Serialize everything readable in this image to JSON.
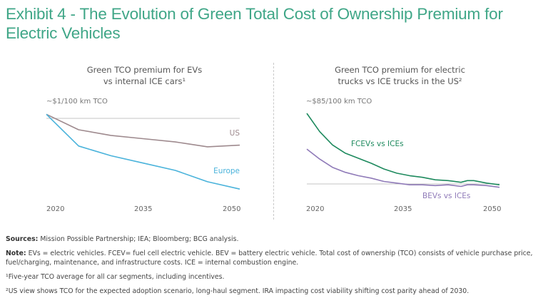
{
  "title": "Exhibit 4 - The Evolution of Green Total Cost of Ownership Premium for Electric Vehicles",
  "colors": {
    "title": "#3fa687",
    "us": "#9e8a8e",
    "europe": "#4ab3db",
    "fcev": "#1e8a5e",
    "bev": "#8f7ab8",
    "reference": "#c4c4c4"
  },
  "chart_data": [
    {
      "type": "line",
      "title": "Green TCO premium for EVs vs internal ICE cars¹",
      "title_lines": [
        "Green TCO premium for EVs",
        "vs internal ICE cars¹"
      ],
      "ylabel": "~$1/100 km TCO",
      "xlabel": "",
      "x_ticks": [
        "2020",
        "2035",
        "2050"
      ],
      "xlim": [
        2020,
        2050
      ],
      "ylim": [
        0,
        1.1
      ],
      "reference_line": 1.0,
      "grid": false,
      "x": [
        2020,
        2025,
        2030,
        2035,
        2040,
        2045,
        2050
      ],
      "series": [
        {
          "name": "US",
          "label": "US",
          "values": [
            1.05,
            0.86,
            0.79,
            0.75,
            0.71,
            0.65,
            0.67
          ]
        },
        {
          "name": "Europe",
          "label": "Europe",
          "values": [
            1.05,
            0.66,
            0.54,
            0.45,
            0.36,
            0.22,
            0.13
          ]
        }
      ]
    },
    {
      "type": "line",
      "title": "Green TCO premium for electric trucks vs ICE trucks in the US²",
      "title_lines": [
        "Green TCO premium for electric",
        "trucks vs ICE trucks in the US²"
      ],
      "ylabel": "~$85/100 km TCO",
      "xlabel": "",
      "x_ticks": [
        "2020",
        "2035",
        "2050"
      ],
      "xlim": [
        2020,
        2050
      ],
      "ylim": [
        -10,
        85
      ],
      "reference_line": 0,
      "grid": false,
      "x": [
        2020,
        2022,
        2024,
        2026,
        2028,
        2030,
        2032,
        2034,
        2036,
        2038,
        2040,
        2042,
        2044,
        2045,
        2046,
        2048,
        2050
      ],
      "series": [
        {
          "name": "FCEVs vs ICEs",
          "label": "FCEVs vs ICEs",
          "values": [
            85,
            63,
            47,
            37,
            31,
            25,
            18,
            13,
            10,
            8,
            5,
            4,
            2,
            4,
            4,
            1,
            -1
          ]
        },
        {
          "name": "BEVs vs ICEs",
          "label": "BEVs vs ICEs",
          "values": [
            42,
            30,
            20,
            14,
            10,
            7,
            3,
            1,
            -1,
            -1,
            -2,
            -1,
            -3,
            -1,
            -1,
            -2,
            -4
          ]
        }
      ]
    }
  ],
  "footnotes": {
    "sources_label": "Sources:",
    "sources_text": " Mission Possible Partnership; IEA; Bloomberg; BCG analysis.",
    "note_label": "Note:",
    "note_text": " EVs = electric vehicles. FCEV= fuel cell electric vehicle. BEV = battery electric vehicle. Total cost of ownership (TCO) consists of vehicle purchase price, fuel/charging, maintenance, and infrastructure costs. ICE = internal combustion engine.",
    "footnote1": "¹Five-year TCO average for all car segments, including incentives.",
    "footnote2": "²US view shows TCO for the expected adoption scenario, long-haul segment. IRA impacting cost viability shifting cost parity ahead of 2030."
  }
}
